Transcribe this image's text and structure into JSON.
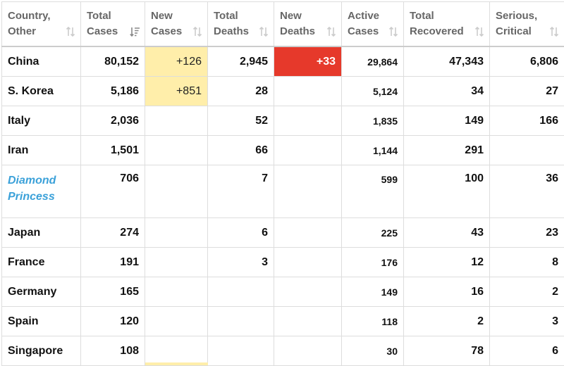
{
  "headers": [
    {
      "line1": "Country,",
      "line2": "Other",
      "sort_icon": "sort-both-icon"
    },
    {
      "line1": "Total",
      "line2": "Cases",
      "sort_icon": "sort-descending-icon"
    },
    {
      "line1": "New",
      "line2": "Cases",
      "sort_icon": "sort-both-icon"
    },
    {
      "line1": "Total",
      "line2": "Deaths",
      "sort_icon": "sort-both-icon"
    },
    {
      "line1": "New",
      "line2": "Deaths",
      "sort_icon": "sort-both-icon"
    },
    {
      "line1": "Active",
      "line2": "Cases",
      "sort_icon": "sort-both-icon"
    },
    {
      "line1": "Total",
      "line2": "Recovered",
      "sort_icon": "sort-both-icon"
    },
    {
      "line1": "Serious,",
      "line2": "Critical",
      "sort_icon": "sort-both-icon"
    }
  ],
  "rows": [
    {
      "country": "China",
      "total_cases": "80,152",
      "new_cases": "+126",
      "total_deaths": "2,945",
      "new_deaths": "+33",
      "active_cases": "29,864",
      "total_recovered": "47,343",
      "serious_critical": "6,806"
    },
    {
      "country": "S. Korea",
      "total_cases": "5,186",
      "new_cases": "+851",
      "total_deaths": "28",
      "new_deaths": "",
      "active_cases": "5,124",
      "total_recovered": "34",
      "serious_critical": "27"
    },
    {
      "country": "Italy",
      "total_cases": "2,036",
      "new_cases": "",
      "total_deaths": "52",
      "new_deaths": "",
      "active_cases": "1,835",
      "total_recovered": "149",
      "serious_critical": "166"
    },
    {
      "country": "Iran",
      "total_cases": "1,501",
      "new_cases": "",
      "total_deaths": "66",
      "new_deaths": "",
      "active_cases": "1,144",
      "total_recovered": "291",
      "serious_critical": ""
    },
    {
      "country_line1": "Diamond",
      "country_line2": "Princess",
      "total_cases": "706",
      "new_cases": "",
      "total_deaths": "7",
      "new_deaths": "",
      "active_cases": "599",
      "total_recovered": "100",
      "serious_critical": "36"
    },
    {
      "country": "Japan",
      "total_cases": "274",
      "new_cases": "",
      "total_deaths": "6",
      "new_deaths": "",
      "active_cases": "225",
      "total_recovered": "43",
      "serious_critical": "23"
    },
    {
      "country": "France",
      "total_cases": "191",
      "new_cases": "",
      "total_deaths": "3",
      "new_deaths": "",
      "active_cases": "176",
      "total_recovered": "12",
      "serious_critical": "8"
    },
    {
      "country": "Germany",
      "total_cases": "165",
      "new_cases": "",
      "total_deaths": "",
      "new_deaths": "",
      "active_cases": "149",
      "total_recovered": "16",
      "serious_critical": "2"
    },
    {
      "country": "Spain",
      "total_cases": "120",
      "new_cases": "",
      "total_deaths": "",
      "new_deaths": "",
      "active_cases": "118",
      "total_recovered": "2",
      "serious_critical": "3"
    },
    {
      "country": "Singapore",
      "total_cases": "108",
      "new_cases": "",
      "total_deaths": "",
      "new_deaths": "",
      "active_cases": "30",
      "total_recovered": "78",
      "serious_critical": "6"
    }
  ],
  "colors": {
    "new_cases_highlight": "#ffeeaa",
    "new_deaths_highlight": "#e6392b",
    "link_country": "#3ba1d9",
    "header_text": "#666666",
    "grid": "#dddddd"
  }
}
